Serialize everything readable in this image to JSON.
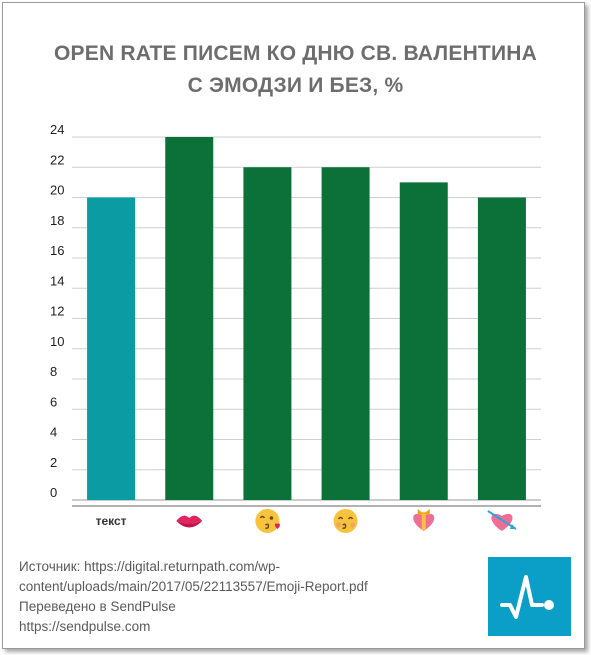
{
  "title": {
    "line1": "OPEN RATE ПИСЕМ КО ДНЮ СВ. ВАЛЕНТИНА",
    "line2": "С ЭМОДЗИ И БЕЗ, %"
  },
  "chart_data": {
    "type": "bar",
    "title": "OPEN RATE ПИСЕМ КО ДНЮ СВ. ВАЛЕНТИНА С ЭМОДЗИ И БЕЗ, %",
    "categories": [
      "текст",
      "kiss-mark-emoji",
      "face-blowing-kiss-emoji",
      "kissing-face-smiling-eyes-emoji",
      "heart-with-ribbon-emoji",
      "heart-with-arrow-emoji"
    ],
    "category_labels": [
      "текст",
      "",
      "",
      "",
      "",
      ""
    ],
    "values": [
      20,
      24,
      22,
      22,
      21,
      20
    ],
    "colors": [
      "#0b9ba3",
      "#0b7138",
      "#0b7138",
      "#0b7138",
      "#0b7138",
      "#0b7138"
    ],
    "ylim": [
      0,
      24
    ],
    "yticks": [
      0,
      2,
      4,
      6,
      8,
      10,
      12,
      14,
      16,
      18,
      20,
      22,
      24
    ],
    "grid": true,
    "xlabel": "",
    "ylabel": ""
  },
  "footer": {
    "source_line1": "Источник: https://digital.returnpath.com/wp-",
    "source_line2": "content/uploads/main/2017/05/22113557/Emoji-Report.pdf",
    "translated": "Переведено в SendPulse",
    "url": "https://sendpulse.com"
  },
  "colors": {
    "title": "#6d6d6d",
    "logo_bg": "#0b9ec6",
    "grid": "#cfcfcf"
  }
}
